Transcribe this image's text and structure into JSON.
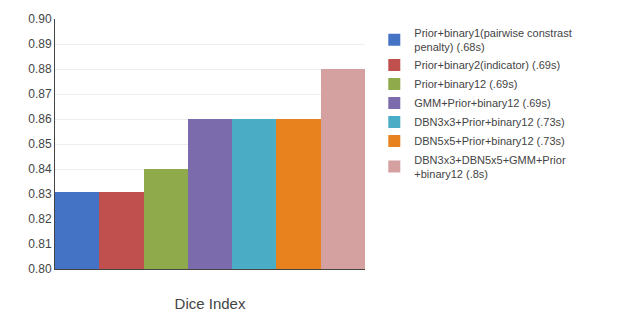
{
  "chart_data": {
    "type": "bar",
    "xlabel": "Dice Index",
    "categories": [
      null
    ],
    "series": [
      {
        "name": "Prior+binary1(pairwise constrast\npenalty) (.68s)",
        "color": "#4472C4",
        "values": [
          0.831
        ]
      },
      {
        "name": "Prior+binary2(indicator) (.69s)",
        "color": "#C0504D",
        "values": [
          0.831
        ]
      },
      {
        "name": "Prior+binary12 (.69s)",
        "color": "#8EAA4B",
        "values": [
          0.84
        ]
      },
      {
        "name": "GMM+Prior+binary12 (.69s)",
        "color": "#7B6BAD",
        "values": [
          0.86
        ]
      },
      {
        "name": "DBN3x3+Prior+binary12 (.73s)",
        "color": "#4BACC6",
        "values": [
          0.86
        ]
      },
      {
        "name": "DBN5x5+Prior+binary12 (.73s)",
        "color": "#E8821E",
        "values": [
          0.86
        ]
      },
      {
        "name": "DBN3x3+DBN5x5+GMM+Prior\n+binary12 (.8s)",
        "color": "#D4A0A0",
        "values": [
          0.88
        ]
      }
    ],
    "ylim": [
      0.8,
      0.9
    ],
    "yticks": [
      {
        "value": 0.8,
        "label": "0.80"
      },
      0.81,
      0.82,
      0.83,
      0.84,
      0.85,
      0.86,
      0.87,
      0.88,
      0.89,
      {
        "value": 0.9,
        "label": "0.90"
      }
    ],
    "grid": true,
    "legend": "right",
    "tick_labels": "y"
  }
}
